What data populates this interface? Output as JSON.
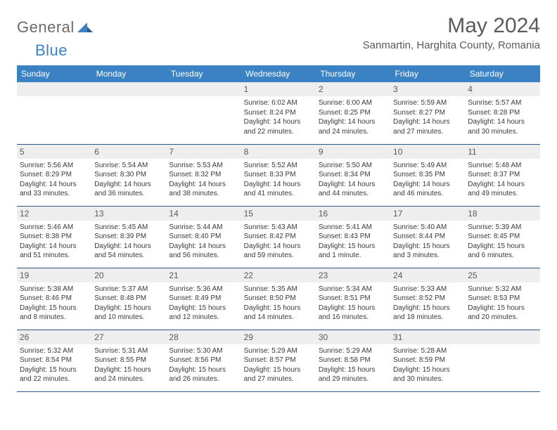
{
  "brand": {
    "general": "General",
    "blue": "Blue"
  },
  "header": {
    "month": "May 2024",
    "location": "Sanmartin, Harghita County, Romania"
  },
  "weekdays": [
    "Sunday",
    "Monday",
    "Tuesday",
    "Wednesday",
    "Thursday",
    "Friday",
    "Saturday"
  ],
  "colors": {
    "header_bg": "#3b82c4",
    "header_text": "#ffffff",
    "cell_border": "#2c5a8a",
    "daynum_bg": "#eeeeee",
    "text": "#3a3a3a",
    "title_text": "#5a5a5a",
    "logo_gray": "#6b6b6b",
    "logo_blue": "#3b82c4"
  },
  "weeks": [
    [
      null,
      null,
      null,
      {
        "n": "1",
        "sr": "6:02 AM",
        "ss": "8:24 PM",
        "dl": "Daylight: 14 hours and 22 minutes."
      },
      {
        "n": "2",
        "sr": "6:00 AM",
        "ss": "8:25 PM",
        "dl": "Daylight: 14 hours and 24 minutes."
      },
      {
        "n": "3",
        "sr": "5:59 AM",
        "ss": "8:27 PM",
        "dl": "Daylight: 14 hours and 27 minutes."
      },
      {
        "n": "4",
        "sr": "5:57 AM",
        "ss": "8:28 PM",
        "dl": "Daylight: 14 hours and 30 minutes."
      }
    ],
    [
      {
        "n": "5",
        "sr": "5:56 AM",
        "ss": "8:29 PM",
        "dl": "Daylight: 14 hours and 33 minutes."
      },
      {
        "n": "6",
        "sr": "5:54 AM",
        "ss": "8:30 PM",
        "dl": "Daylight: 14 hours and 36 minutes."
      },
      {
        "n": "7",
        "sr": "5:53 AM",
        "ss": "8:32 PM",
        "dl": "Daylight: 14 hours and 38 minutes."
      },
      {
        "n": "8",
        "sr": "5:52 AM",
        "ss": "8:33 PM",
        "dl": "Daylight: 14 hours and 41 minutes."
      },
      {
        "n": "9",
        "sr": "5:50 AM",
        "ss": "8:34 PM",
        "dl": "Daylight: 14 hours and 44 minutes."
      },
      {
        "n": "10",
        "sr": "5:49 AM",
        "ss": "8:35 PM",
        "dl": "Daylight: 14 hours and 46 minutes."
      },
      {
        "n": "11",
        "sr": "5:48 AM",
        "ss": "8:37 PM",
        "dl": "Daylight: 14 hours and 49 minutes."
      }
    ],
    [
      {
        "n": "12",
        "sr": "5:46 AM",
        "ss": "8:38 PM",
        "dl": "Daylight: 14 hours and 51 minutes."
      },
      {
        "n": "13",
        "sr": "5:45 AM",
        "ss": "8:39 PM",
        "dl": "Daylight: 14 hours and 54 minutes."
      },
      {
        "n": "14",
        "sr": "5:44 AM",
        "ss": "8:40 PM",
        "dl": "Daylight: 14 hours and 56 minutes."
      },
      {
        "n": "15",
        "sr": "5:43 AM",
        "ss": "8:42 PM",
        "dl": "Daylight: 14 hours and 59 minutes."
      },
      {
        "n": "16",
        "sr": "5:41 AM",
        "ss": "8:43 PM",
        "dl": "Daylight: 15 hours and 1 minute."
      },
      {
        "n": "17",
        "sr": "5:40 AM",
        "ss": "8:44 PM",
        "dl": "Daylight: 15 hours and 3 minutes."
      },
      {
        "n": "18",
        "sr": "5:39 AM",
        "ss": "8:45 PM",
        "dl": "Daylight: 15 hours and 6 minutes."
      }
    ],
    [
      {
        "n": "19",
        "sr": "5:38 AM",
        "ss": "8:46 PM",
        "dl": "Daylight: 15 hours and 8 minutes."
      },
      {
        "n": "20",
        "sr": "5:37 AM",
        "ss": "8:48 PM",
        "dl": "Daylight: 15 hours and 10 minutes."
      },
      {
        "n": "21",
        "sr": "5:36 AM",
        "ss": "8:49 PM",
        "dl": "Daylight: 15 hours and 12 minutes."
      },
      {
        "n": "22",
        "sr": "5:35 AM",
        "ss": "8:50 PM",
        "dl": "Daylight: 15 hours and 14 minutes."
      },
      {
        "n": "23",
        "sr": "5:34 AM",
        "ss": "8:51 PM",
        "dl": "Daylight: 15 hours and 16 minutes."
      },
      {
        "n": "24",
        "sr": "5:33 AM",
        "ss": "8:52 PM",
        "dl": "Daylight: 15 hours and 18 minutes."
      },
      {
        "n": "25",
        "sr": "5:32 AM",
        "ss": "8:53 PM",
        "dl": "Daylight: 15 hours and 20 minutes."
      }
    ],
    [
      {
        "n": "26",
        "sr": "5:32 AM",
        "ss": "8:54 PM",
        "dl": "Daylight: 15 hours and 22 minutes."
      },
      {
        "n": "27",
        "sr": "5:31 AM",
        "ss": "8:55 PM",
        "dl": "Daylight: 15 hours and 24 minutes."
      },
      {
        "n": "28",
        "sr": "5:30 AM",
        "ss": "8:56 PM",
        "dl": "Daylight: 15 hours and 26 minutes."
      },
      {
        "n": "29",
        "sr": "5:29 AM",
        "ss": "8:57 PM",
        "dl": "Daylight: 15 hours and 27 minutes."
      },
      {
        "n": "30",
        "sr": "5:29 AM",
        "ss": "8:58 PM",
        "dl": "Daylight: 15 hours and 29 minutes."
      },
      {
        "n": "31",
        "sr": "5:28 AM",
        "ss": "8:59 PM",
        "dl": "Daylight: 15 hours and 30 minutes."
      },
      null
    ]
  ]
}
